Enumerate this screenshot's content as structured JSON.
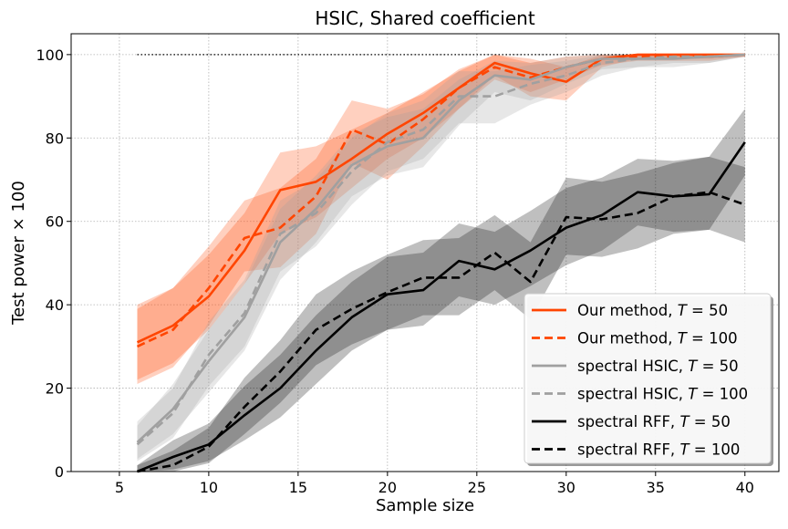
{
  "chart_data": {
    "type": "line",
    "title": "HSIC, Shared coefficient",
    "xlabel": "Sample size",
    "ylabel": "Test power × 100",
    "xlim": [
      2.3,
      41.9
    ],
    "ylim": [
      0,
      105
    ],
    "x_ticks": [
      5,
      10,
      15,
      20,
      25,
      30,
      35,
      40
    ],
    "y_ticks": [
      0,
      20,
      40,
      60,
      80,
      100
    ],
    "grid": true,
    "legend_position": "lower-right",
    "reference_line": {
      "y": 100,
      "x_from": 6,
      "x_to": 40,
      "style": "dotted",
      "color": "#000000"
    },
    "x": [
      6,
      8,
      10,
      12,
      14,
      16,
      18,
      20,
      22,
      24,
      26,
      28,
      30,
      32,
      34,
      36,
      38,
      40
    ],
    "series": [
      {
        "name": "Our method, T = 50",
        "legend_prefix": "Our method, ",
        "legend_var": "T",
        "legend_suffix": " = 50",
        "color": "#ff4500",
        "dash": "solid",
        "values": [
          31,
          35,
          42,
          53,
          67.5,
          69.5,
          75,
          81,
          86,
          92,
          98,
          95.5,
          93.5,
          99,
          100,
          100,
          100,
          100
        ],
        "lower": [
          22,
          26,
          34,
          45,
          57,
          61,
          68,
          75,
          80,
          87,
          95,
          90,
          89,
          97,
          99,
          99,
          99,
          99.5
        ],
        "upper": [
          39,
          44,
          52,
          62,
          76.5,
          78,
          82,
          86,
          91,
          96,
          100,
          99,
          97,
          100,
          100,
          100,
          100,
          100
        ]
      },
      {
        "name": "Our method, T = 100",
        "legend_prefix": "Our method, ",
        "legend_var": "T",
        "legend_suffix": " = 100",
        "color": "#ff4500",
        "dash": "dashed",
        "values": [
          30,
          34,
          44,
          56,
          58.5,
          66,
          82,
          78.5,
          84.5,
          92,
          97,
          94.5,
          97,
          99,
          99.5,
          99.5,
          99.5,
          100
        ],
        "lower": [
          21,
          25,
          35,
          48,
          49,
          57,
          74,
          70,
          78,
          87,
          94,
          91,
          94,
          97.5,
          98.5,
          98.5,
          98.5,
          99.5
        ],
        "upper": [
          40,
          44,
          54,
          65,
          68,
          75,
          89,
          87,
          90.5,
          96.5,
          100,
          98,
          99.5,
          100,
          100,
          100,
          100,
          100
        ]
      },
      {
        "name": "spectral HSIC, T = 50",
        "legend_prefix": "spectral HSIC, ",
        "legend_var": "T",
        "legend_suffix": " = 50",
        "color": "#a0a0a0",
        "dash": "solid",
        "values": [
          7,
          15,
          26.5,
          37,
          55,
          63,
          73.5,
          78,
          80,
          89,
          95,
          94,
          97,
          99,
          99,
          99,
          99.5,
          100
        ],
        "lower": [
          3,
          9,
          19,
          29,
          46,
          55,
          66,
          71,
          73,
          83,
          91,
          89,
          93,
          96.5,
          97,
          97,
          98,
          99.5
        ],
        "upper": [
          11,
          21,
          34,
          45,
          63,
          71,
          81,
          85,
          87,
          94,
          98.5,
          98,
          99.5,
          100,
          100,
          100,
          100,
          100
        ]
      },
      {
        "name": "spectral HSIC, T = 100",
        "legend_prefix": "spectral HSIC, ",
        "legend_var": "T",
        "legend_suffix": " = 100",
        "color": "#a0a0a0",
        "dash": "dashed",
        "values": [
          6.5,
          14,
          28,
          38,
          57,
          62,
          72,
          79,
          82,
          90,
          90,
          93,
          95,
          98,
          99,
          99.5,
          99.5,
          100
        ],
        "lower": [
          2.5,
          8,
          20.5,
          30,
          48,
          54,
          64,
          72,
          75,
          83.5,
          83.5,
          88,
          91,
          95,
          97,
          98,
          98,
          99.5
        ],
        "upper": [
          12,
          20,
          36,
          46,
          65,
          70,
          80,
          86,
          89,
          96,
          96,
          97.5,
          98.5,
          100,
          100,
          100,
          100,
          100
        ]
      },
      {
        "name": "spectral RFF, T = 50",
        "legend_prefix": "spectral RFF, ",
        "legend_var": "T",
        "legend_suffix": " = 50",
        "color": "#000000",
        "dash": "solid",
        "values": [
          0,
          3.5,
          6.5,
          13.5,
          20,
          29,
          37,
          42.5,
          43.5,
          50.5,
          48.5,
          53,
          58.5,
          61.5,
          67,
          66,
          66.5,
          79
        ],
        "lower": [
          0,
          0.5,
          2.5,
          7.5,
          13,
          21,
          29,
          34,
          35,
          42,
          40,
          44.5,
          49.5,
          53,
          59,
          57.5,
          58,
          71
        ],
        "upper": [
          1.5,
          7.5,
          11.5,
          20.5,
          28,
          37.5,
          45.5,
          51.5,
          52.5,
          59.5,
          57.5,
          62.5,
          68,
          70.5,
          75,
          74.5,
          75.5,
          87
        ]
      },
      {
        "name": "spectral RFF, T = 100",
        "legend_prefix": "spectral RFF, ",
        "legend_var": "T",
        "legend_suffix": " = 100",
        "color": "#000000",
        "dash": "dashed",
        "values": [
          0,
          1.5,
          6,
          15.5,
          24,
          34,
          39,
          43,
          46.5,
          46.5,
          52.5,
          45.5,
          61,
          60.5,
          62,
          66,
          67,
          64
        ],
        "lower": [
          0,
          0,
          2,
          9,
          16.5,
          25.5,
          30.5,
          34,
          37.5,
          37.5,
          43.5,
          36.5,
          52,
          51.5,
          53.5,
          57,
          58,
          55
        ],
        "upper": [
          1.5,
          5,
          10.5,
          22.5,
          31.5,
          42.5,
          48,
          52,
          55.5,
          56,
          61.5,
          55,
          70.5,
          69.5,
          71.5,
          74,
          75.5,
          73
        ]
      }
    ]
  }
}
